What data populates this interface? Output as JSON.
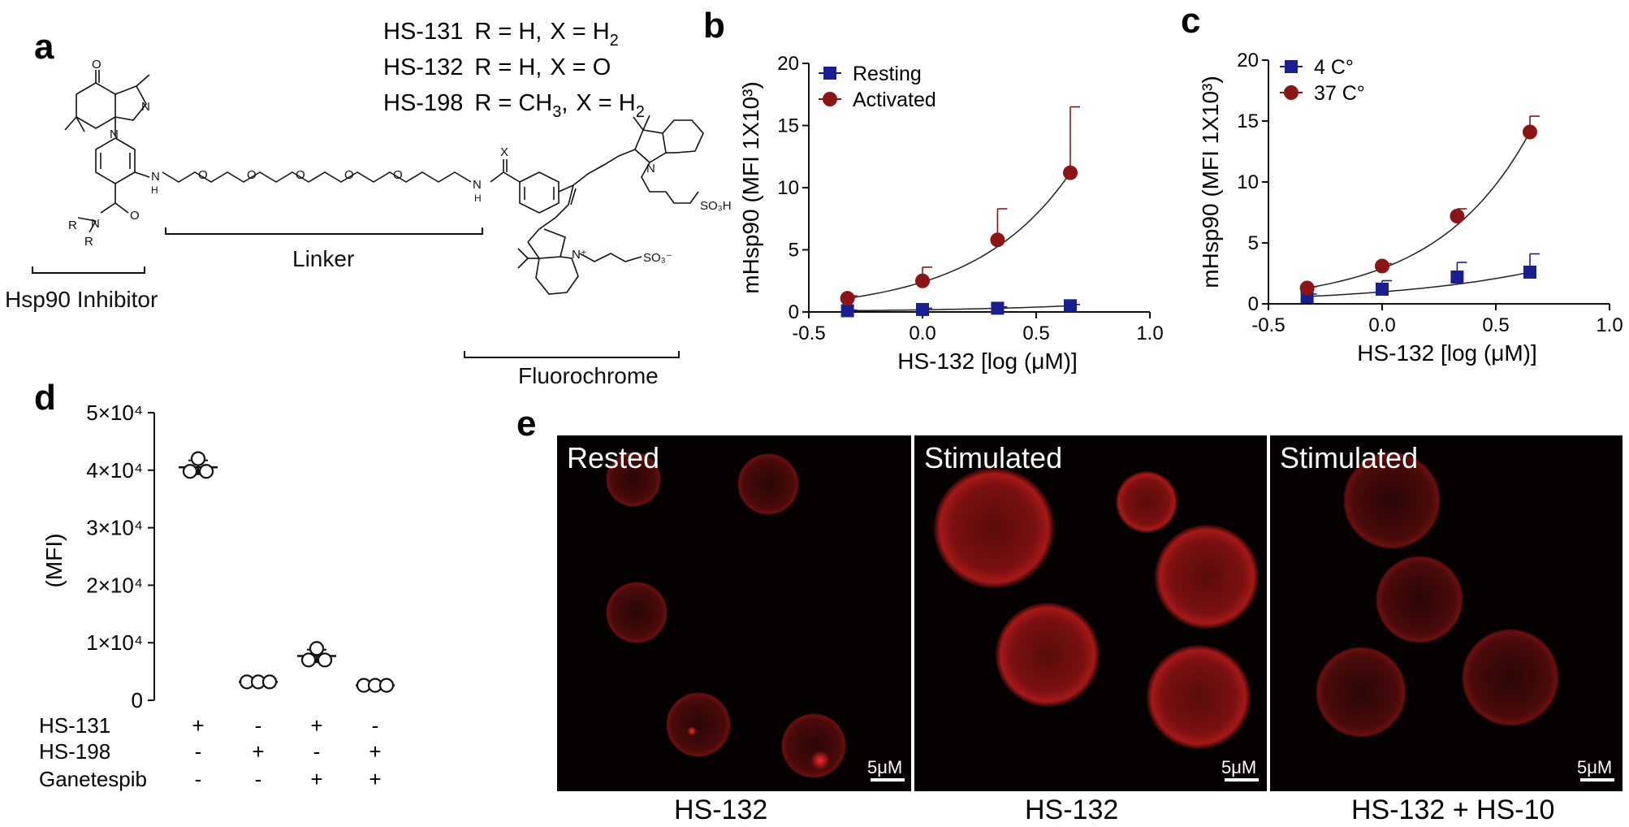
{
  "panels": {
    "a": {
      "letter": "a",
      "compounds": [
        {
          "name": "HS-131",
          "r": "R = H,",
          "x": "X = H",
          "x_sub": "2"
        },
        {
          "name": "HS-132",
          "r": "R = H,",
          "x": "X = O",
          "x_sub": ""
        },
        {
          "name": "HS-198",
          "r": "R = CH",
          "r_sub": "3",
          "r_tail": ",",
          "x": "X = H",
          "x_sub": "2"
        }
      ],
      "region_labels": {
        "inhibitor": "Hsp90 Inhibitor",
        "linker": "Linker",
        "fluorochrome": "Fluorochrome"
      },
      "atoms": {
        "O_top": "O",
        "N1": "N",
        "N2": "N",
        "NH1": "N",
        "H1": "H",
        "NH2": "N",
        "H2": "H",
        "X": "X",
        "O_ring": [
          "O",
          "O",
          "O",
          "O",
          "O"
        ],
        "R1": "R",
        "N_amide": "N",
        "R2": "R",
        "O_amide": "O",
        "N_dye_top": "N",
        "SO3H": "SO₃H",
        "N_dye_bot": "N⁺",
        "SO3m": "SO₃⁻"
      }
    },
    "b": {
      "letter": "b"
    },
    "c": {
      "letter": "c"
    },
    "d": {
      "letter": "d"
    },
    "e": {
      "letter": "e",
      "images": [
        {
          "label": "Rested",
          "caption": "HS-132",
          "scale": "5μM"
        },
        {
          "label": "Stimulated",
          "caption": "HS-132",
          "scale": "5μM"
        },
        {
          "label": "Stimulated",
          "caption": "HS-132 + HS-10",
          "scale": "5μM"
        }
      ]
    }
  },
  "chart_data": [
    {
      "panel": "b",
      "type": "scatter",
      "xlabel": "HS-132 [log (μM)]",
      "ylabel": "mHsp90 (MFI 1X10³)",
      "xlim": [
        -0.5,
        1.0
      ],
      "ylim": [
        0,
        20
      ],
      "xticks": [
        "-0.5",
        "0.0",
        "0.5",
        "1.0"
      ],
      "yticks": [
        "0",
        "5",
        "10",
        "15",
        "20"
      ],
      "legend_position": "top-left",
      "series": [
        {
          "name": "Resting",
          "marker": "square",
          "color": "#1a1f8f",
          "x": [
            -0.33,
            0.0,
            0.33,
            0.65
          ],
          "y": [
            0.1,
            0.2,
            0.3,
            0.5
          ],
          "err": [
            0.05,
            0.1,
            0.1,
            0.1
          ]
        },
        {
          "name": "Activated",
          "marker": "circle",
          "color": "#8b1515",
          "x": [
            -0.33,
            0.0,
            0.33,
            0.65
          ],
          "y": [
            1.1,
            2.5,
            5.8,
            11.2
          ],
          "err": [
            0.2,
            1.1,
            2.5,
            5.3
          ]
        }
      ]
    },
    {
      "panel": "c",
      "type": "scatter",
      "xlabel": "HS-132 [log (μM)]",
      "ylabel": "mHsp90 (MFI 1X10³)",
      "xlim": [
        -0.5,
        1.0
      ],
      "ylim": [
        0,
        20
      ],
      "xticks": [
        "-0.5",
        "0.0",
        "0.5",
        "1.0"
      ],
      "yticks": [
        "0",
        "5",
        "10",
        "15",
        "20"
      ],
      "legend_position": "top-left",
      "series": [
        {
          "name": "4 C°",
          "marker": "square",
          "color": "#1a1f8f",
          "x": [
            -0.33,
            0.0,
            0.33,
            0.65
          ],
          "y": [
            0.6,
            1.2,
            2.2,
            2.6
          ],
          "err": [
            0.2,
            0.7,
            1.2,
            1.5
          ]
        },
        {
          "name": "37 C°",
          "marker": "circle",
          "color": "#8b1515",
          "x": [
            -0.33,
            0.0,
            0.33,
            0.65
          ],
          "y": [
            1.3,
            3.1,
            7.2,
            14.1
          ],
          "err": [
            0.1,
            0.2,
            0.6,
            1.3
          ]
        }
      ]
    },
    {
      "panel": "d",
      "type": "scatter",
      "ylabel": "(MFI)",
      "ylim": [
        0,
        50000
      ],
      "yticks": [
        "0",
        "1×10⁴",
        "2×10⁴",
        "3×10⁴",
        "4×10⁴",
        "5×10⁴"
      ],
      "groups": [
        {
          "points": [
            42000,
            39800,
            39800
          ],
          "mean": 40500,
          "sd": 1200
        },
        {
          "points": [
            3200,
            3200,
            3200
          ],
          "mean": 3200,
          "sd": 300
        },
        {
          "points": [
            9000,
            7000,
            7000
          ],
          "mean": 7700,
          "sd": 1100
        },
        {
          "points": [
            2600,
            2600,
            2600
          ],
          "mean": 2600,
          "sd": 200
        }
      ],
      "treatments": [
        {
          "name": "HS-131",
          "signs": [
            "+",
            "-",
            "+",
            "-"
          ]
        },
        {
          "name": "HS-198",
          "signs": [
            "-",
            "+",
            "-",
            "+"
          ]
        },
        {
          "name": "Ganetespib",
          "signs": [
            "-",
            "-",
            "+",
            "+"
          ]
        }
      ]
    }
  ]
}
